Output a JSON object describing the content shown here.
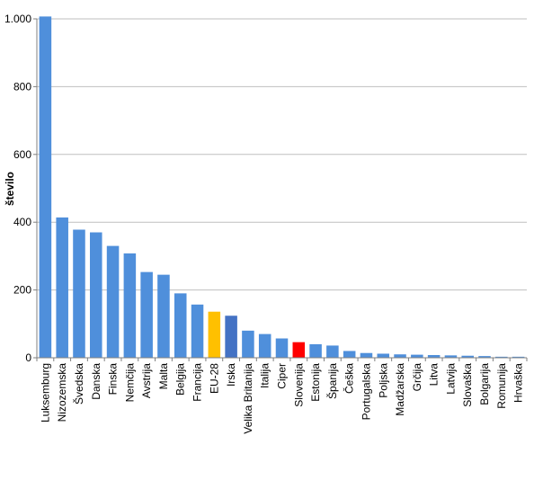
{
  "chart_data": {
    "type": "bar",
    "title": "",
    "xlabel": "",
    "ylabel": "število",
    "ylim": [
      0,
      1000
    ],
    "yticks": [
      0,
      200,
      400,
      600,
      800,
      1000
    ],
    "ytick_labels": [
      "0",
      "200",
      "400",
      "600",
      "800",
      "1.000"
    ],
    "grid": true,
    "legend": "none",
    "default_color": "#4f8fdb",
    "categories": [
      "Luksemburg",
      "Nizozemska",
      "Švedska",
      "Danska",
      "Finska",
      "Nemčija",
      "Avstrija",
      "Malta",
      "Belgija",
      "Francija",
      "EU-28",
      "Irska",
      "Velika Britanija",
      "Italija",
      "Ciper",
      "Slovenija",
      "Estonija",
      "Španija",
      "Češka",
      "Portugalska",
      "Poljska",
      "Madžarska",
      "Grčija",
      "Litva",
      "Latvija",
      "Slovaška",
      "Bolgarija",
      "Romunija",
      "Hrvaška"
    ],
    "values": [
      1007,
      414,
      378,
      370,
      330,
      308,
      253,
      245,
      190,
      157,
      136,
      124,
      80,
      70,
      57,
      46,
      40,
      36,
      20,
      14,
      12,
      10,
      9,
      8,
      7,
      6,
      5,
      3,
      3
    ],
    "colors": [
      "#4f8fdb",
      "#4f8fdb",
      "#4f8fdb",
      "#4f8fdb",
      "#4f8fdb",
      "#4f8fdb",
      "#4f8fdb",
      "#4f8fdb",
      "#4f8fdb",
      "#4f8fdb",
      "#ffc000",
      "#4472c4",
      "#4f8fdb",
      "#4f8fdb",
      "#4f8fdb",
      "#ff0000",
      "#4f8fdb",
      "#4f8fdb",
      "#4f8fdb",
      "#4f8fdb",
      "#4f8fdb",
      "#4f8fdb",
      "#4f8fdb",
      "#4f8fdb",
      "#4f8fdb",
      "#4f8fdb",
      "#4f8fdb",
      "#4f8fdb",
      "#4f8fdb"
    ]
  }
}
